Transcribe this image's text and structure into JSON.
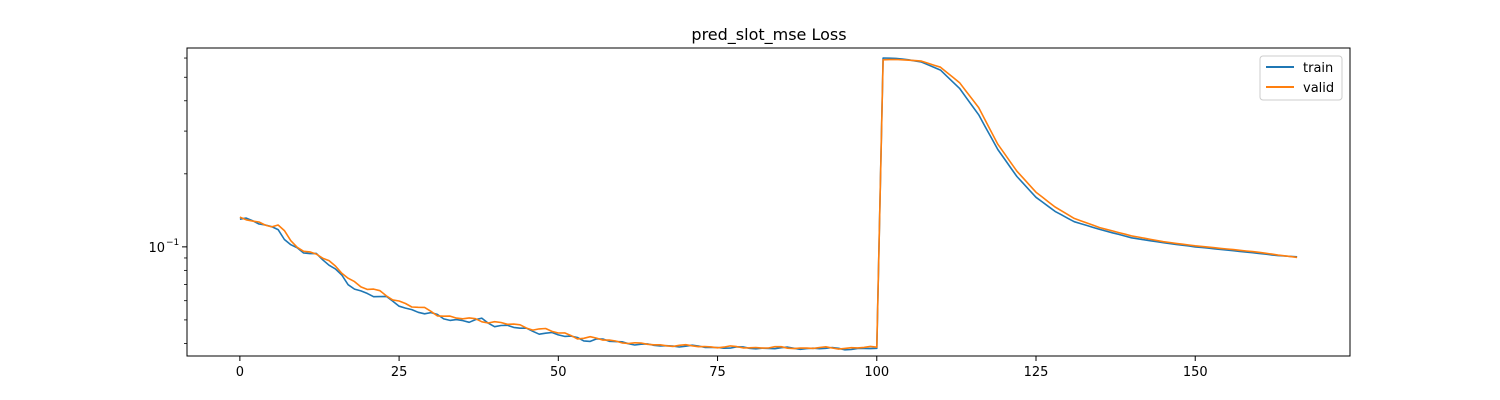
{
  "chart_data": {
    "type": "line",
    "title": "pred_slot_mse Loss",
    "xlabel": "",
    "ylabel": "",
    "yscale": "log",
    "xlim": [
      -8.3,
      174.3
    ],
    "ylim": [
      0.0355,
      0.66
    ],
    "xticks": [
      0,
      25,
      50,
      75,
      100,
      125,
      150
    ],
    "xtick_labels": [
      "0",
      "25",
      "50",
      "75",
      "100",
      "125",
      "150"
    ],
    "yticks": [
      0.1
    ],
    "ytick_labels": [
      "10",
      "−1"
    ],
    "grid": false,
    "legend": {
      "position": "top-right"
    },
    "series": [
      {
        "name": "train",
        "color": "#1f77b4",
        "anchors": [
          [
            0,
            0.13
          ],
          [
            2,
            0.127
          ],
          [
            4,
            0.123
          ],
          [
            6,
            0.12
          ],
          [
            7,
            0.108
          ],
          [
            8,
            0.1
          ],
          [
            10,
            0.095
          ],
          [
            12,
            0.094
          ],
          [
            14,
            0.085
          ],
          [
            15,
            0.08
          ],
          [
            17,
            0.07
          ],
          [
            19,
            0.066
          ],
          [
            21,
            0.063
          ],
          [
            23,
            0.061
          ],
          [
            25,
            0.058
          ],
          [
            27,
            0.055
          ],
          [
            29,
            0.053
          ],
          [
            31,
            0.052
          ],
          [
            34,
            0.05
          ],
          [
            36,
            0.049
          ],
          [
            38,
            0.05
          ],
          [
            40,
            0.048
          ],
          [
            42,
            0.047
          ],
          [
            44,
            0.046
          ],
          [
            46,
            0.045
          ],
          [
            48,
            0.0445
          ],
          [
            50,
            0.043
          ],
          [
            52,
            0.0425
          ],
          [
            55,
            0.0415
          ],
          [
            58,
            0.0408
          ],
          [
            60,
            0.0405
          ],
          [
            62,
            0.0398
          ],
          [
            65,
            0.0392
          ],
          [
            70,
            0.039
          ],
          [
            75,
            0.0385
          ],
          [
            80,
            0.0383
          ],
          [
            85,
            0.0382
          ],
          [
            90,
            0.0382
          ],
          [
            95,
            0.038
          ],
          [
            99,
            0.0381
          ],
          [
            100,
            0.0382
          ],
          [
            101,
            0.6
          ],
          [
            103,
            0.598
          ],
          [
            105,
            0.59
          ],
          [
            107,
            0.578
          ],
          [
            110,
            0.535
          ],
          [
            113,
            0.45
          ],
          [
            116,
            0.35
          ],
          [
            119,
            0.252
          ],
          [
            122,
            0.195
          ],
          [
            125,
            0.16
          ],
          [
            128,
            0.14
          ],
          [
            131,
            0.127
          ],
          [
            135,
            0.118
          ],
          [
            140,
            0.109
          ],
          [
            145,
            0.104
          ],
          [
            150,
            0.1
          ],
          [
            155,
            0.097
          ],
          [
            160,
            0.094
          ],
          [
            163,
            0.092
          ],
          [
            166,
            0.091
          ]
        ]
      },
      {
        "name": "valid",
        "color": "#ff7f0e",
        "anchors": [
          [
            0,
            0.13
          ],
          [
            2,
            0.128
          ],
          [
            4,
            0.124
          ],
          [
            6,
            0.123
          ],
          [
            7,
            0.114
          ],
          [
            8,
            0.105
          ],
          [
            10,
            0.096
          ],
          [
            12,
            0.095
          ],
          [
            14,
            0.086
          ],
          [
            15,
            0.082
          ],
          [
            17,
            0.075
          ],
          [
            19,
            0.069
          ],
          [
            21,
            0.066
          ],
          [
            23,
            0.063
          ],
          [
            25,
            0.06
          ],
          [
            27,
            0.057
          ],
          [
            29,
            0.055
          ],
          [
            31,
            0.053
          ],
          [
            34,
            0.051
          ],
          [
            36,
            0.05
          ],
          [
            38,
            0.05
          ],
          [
            40,
            0.049
          ],
          [
            42,
            0.048
          ],
          [
            44,
            0.047
          ],
          [
            46,
            0.0465
          ],
          [
            48,
            0.0455
          ],
          [
            50,
            0.044
          ],
          [
            52,
            0.0432
          ],
          [
            55,
            0.042
          ],
          [
            58,
            0.041
          ],
          [
            60,
            0.0406
          ],
          [
            62,
            0.04
          ],
          [
            65,
            0.0395
          ],
          [
            70,
            0.0391
          ],
          [
            75,
            0.0387
          ],
          [
            80,
            0.0385
          ],
          [
            85,
            0.0384
          ],
          [
            90,
            0.0383
          ],
          [
            95,
            0.0383
          ],
          [
            99,
            0.0385
          ],
          [
            100,
            0.0386
          ],
          [
            101,
            0.59
          ],
          [
            103,
            0.592
          ],
          [
            105,
            0.588
          ],
          [
            107,
            0.583
          ],
          [
            110,
            0.55
          ],
          [
            113,
            0.475
          ],
          [
            116,
            0.375
          ],
          [
            119,
            0.265
          ],
          [
            122,
            0.205
          ],
          [
            125,
            0.168
          ],
          [
            128,
            0.146
          ],
          [
            131,
            0.131
          ],
          [
            135,
            0.12
          ],
          [
            140,
            0.111
          ],
          [
            145,
            0.105
          ],
          [
            150,
            0.101
          ],
          [
            155,
            0.098
          ],
          [
            160,
            0.095
          ],
          [
            163,
            0.0925
          ],
          [
            166,
            0.0905
          ]
        ]
      }
    ]
  }
}
